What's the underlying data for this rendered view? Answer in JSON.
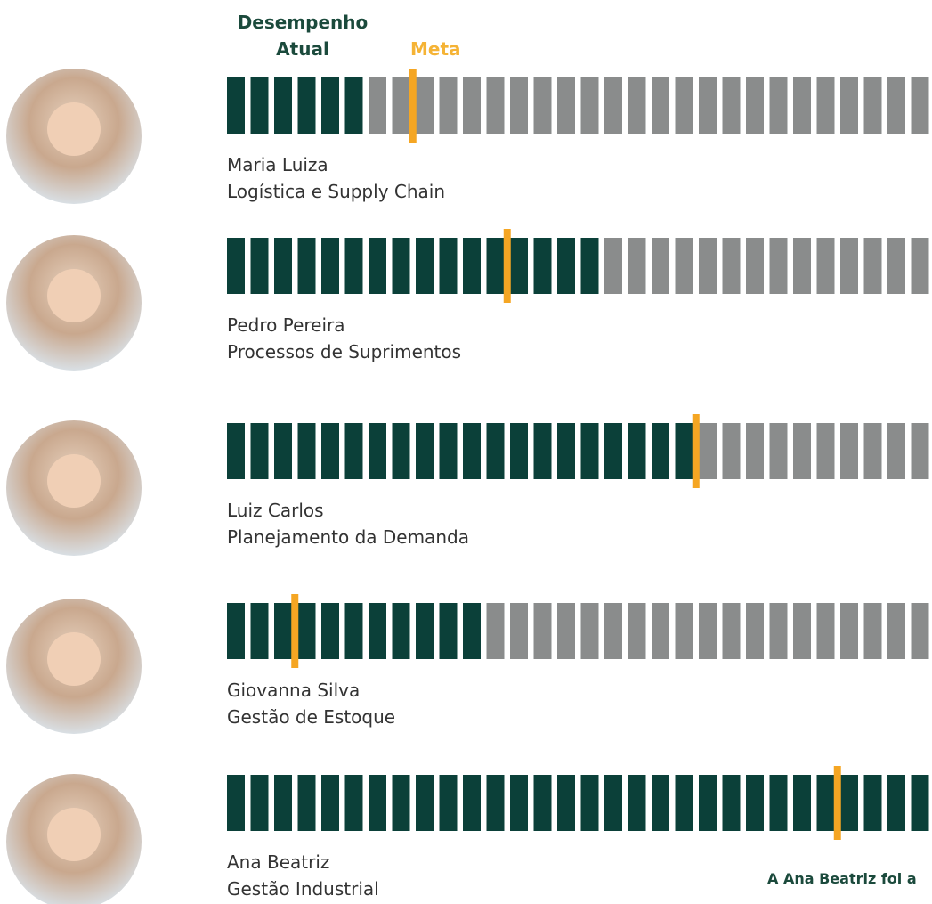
{
  "legend": {
    "current": [
      "Desempenho",
      "Atual"
    ],
    "target": "Meta"
  },
  "total_segments": 30,
  "people": [
    {
      "name": "Maria Luiza",
      "role": "Logística e Supply Chain",
      "current": 6,
      "target": 8
    },
    {
      "name": "Pedro Pereira",
      "role": "Processos de Suprimentos",
      "current": 16,
      "target": 12
    },
    {
      "name": "Luiz Carlos",
      "role": "Planejamento da Demanda",
      "current": 20,
      "target": 20
    },
    {
      "name": "Giovanna Silva",
      "role": "Gestão de Estoque",
      "current": 11,
      "target": 3
    },
    {
      "name": "Ana Beatriz",
      "role": "Gestão Industrial",
      "current": 30,
      "target": 26
    }
  ],
  "note": "A Ana Beatriz foi a"
}
